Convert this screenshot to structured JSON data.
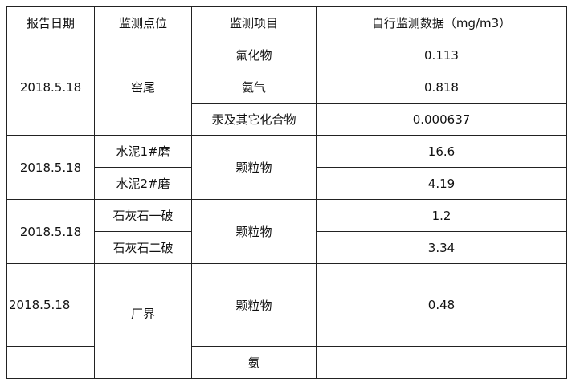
{
  "headers": [
    "报告日期",
    "监测点位",
    "监测项目",
    "自行监测数据（mg/m3）"
  ],
  "groups": [
    {
      "date": "2018.5.18",
      "site": "窑尾",
      "items": [
        {
          "item": "氟化物",
          "value": "0.113"
        },
        {
          "item": "氨气",
          "value": "0.818"
        },
        {
          "item": "汞及其它化合物",
          "value": "0.000637"
        }
      ]
    },
    {
      "date": "2018.5.18",
      "item": "颗粒物",
      "rows": [
        {
          "site": "水泥1#磨",
          "value": "16.6"
        },
        {
          "site": "水泥2#磨",
          "value": "4.19"
        }
      ]
    },
    {
      "date": "2018.5.18",
      "item": "颗粒物",
      "rows": [
        {
          "site": "石灰石一破",
          "value": "1.2"
        },
        {
          "site": "石灰石二破",
          "value": "3.34"
        }
      ]
    },
    {
      "date": "2018.5.18",
      "site": "厂界",
      "items": [
        {
          "item": "颗粒物",
          "value": "0.48"
        },
        {
          "item": "氨",
          "value": ""
        }
      ]
    }
  ]
}
